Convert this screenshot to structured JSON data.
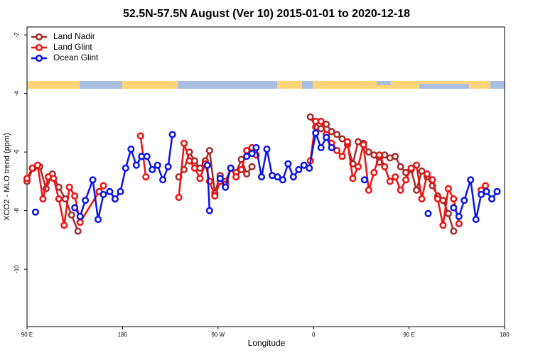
{
  "chart_data": {
    "type": "line",
    "title": "52.5N-57.5N August (Ver 10)   2015-01-01 to 2020-12-18",
    "xlabel": "Longitude",
    "ylabel": "XCO2 - MLO trend (ppm)",
    "xlim": [
      -270,
      180
    ],
    "ylim": [
      -11.96,
      -1.73
    ],
    "xticks": [
      {
        "value": -270,
        "label": "90 E"
      },
      {
        "value": -180,
        "label": "180"
      },
      {
        "value": -90,
        "label": "90 W"
      },
      0,
      {
        "value": 90,
        "label": "90 E"
      },
      180
    ],
    "yticks": [
      -10,
      -8,
      -6,
      -4,
      -2
    ],
    "legend": "top-left",
    "series": [
      {
        "name": "Land Nadir",
        "color": "#a52a2a",
        "x": [
          -270,
          -264,
          -258,
          -252,
          -246,
          -240,
          -234,
          -228,
          -222,
          -175,
          -127,
          -122,
          -117,
          -112,
          -107,
          -102,
          -98,
          -93,
          -88,
          -83,
          -78,
          -73,
          -68,
          -63,
          -58,
          -30,
          -3,
          2,
          7,
          12,
          17,
          22,
          27,
          32,
          37,
          42,
          47,
          52,
          57,
          62,
          67,
          72,
          77,
          82,
          87,
          92,
          97,
          102,
          107,
          112,
          117,
          122,
          127,
          132
        ],
        "values": [
          -7.0,
          -6.55,
          -6.5,
          -7.25,
          -6.75,
          -7.2,
          -7.6,
          -8.15,
          -8.7,
          null,
          -6.85,
          -6.6,
          -6.0,
          -6.3,
          -6.55,
          -6.3,
          -5.95,
          -7.4,
          -6.8,
          -7.0,
          -6.55,
          -6.7,
          -6.25,
          -6.75,
          -6.5,
          null,
          -4.8,
          -5.15,
          -5.2,
          -5.05,
          -5.3,
          -5.4,
          -5.55,
          -5.75,
          -6.4,
          -5.65,
          -5.7,
          -6.0,
          -6.1,
          -6.35,
          -6.1,
          -6.2,
          -6.15,
          -6.5,
          -6.7,
          -6.6,
          -7.3,
          -6.65,
          -6.85,
          -7.15,
          -7.5,
          -7.65,
          -8.1,
          -8.7
        ]
      },
      {
        "name": "Land Glint",
        "color": "#ee1111",
        "x": [
          -270,
          -265,
          -260,
          -255,
          -250,
          -245,
          -240,
          -235,
          -230,
          -225,
          -220,
          -202,
          -198,
          -190,
          -163,
          -158,
          -150,
          -127,
          -122,
          -117,
          -112,
          -107,
          -102,
          -98,
          -93,
          -88,
          -83,
          -78,
          -73,
          -68,
          -63,
          -58,
          -54,
          -30,
          -3,
          2,
          7,
          12,
          17,
          22,
          27,
          32,
          37,
          42,
          47,
          52,
          57,
          62,
          67,
          72,
          77,
          82,
          87,
          92,
          97,
          102,
          107,
          112,
          117,
          122,
          127,
          132,
          137,
          150,
          158,
          162
        ],
        "values": [
          -6.9,
          -6.55,
          -6.45,
          -7.6,
          -6.85,
          -6.9,
          -7.6,
          -8.5,
          -7.2,
          -7.5,
          -8.4,
          -7.35,
          -7.15,
          null,
          -5.45,
          -6.85,
          null,
          -7.55,
          -5.7,
          -6.3,
          -6.55,
          -6.9,
          -6.4,
          -7.0,
          -7.5,
          -7.0,
          -7.1,
          -6.55,
          -6.85,
          -6.6,
          -5.95,
          -5.85,
          -6.1,
          null,
          -6.3,
          -4.95,
          -4.95,
          -5.4,
          -5.7,
          -5.95,
          -6.15,
          -5.65,
          -6.9,
          -6.5,
          -5.75,
          -7.3,
          -6.7,
          -6.1,
          -6.5,
          -7.0,
          -6.85,
          -7.3,
          -6.95,
          -6.55,
          -6.45,
          -7.6,
          -6.75,
          -6.95,
          -7.6,
          -8.5,
          -7.25,
          -7.6,
          -8.45,
          null,
          -7.3,
          -7.15
        ]
      },
      {
        "name": "Ocean Glint",
        "color": "#0a14e6",
        "x": [
          -262,
          -240,
          -225,
          -220,
          -215,
          -208,
          -203,
          -198,
          -192,
          -187,
          -182,
          -177,
          -172,
          -167,
          -162,
          -157,
          -152,
          -147,
          -142,
          -137,
          -133,
          -130,
          -100,
          -98,
          -96,
          -88,
          -83,
          -78,
          -70,
          -63,
          -58,
          -54,
          -49,
          -44,
          -39,
          -34,
          -29,
          -24,
          -19,
          -14,
          -9,
          -4,
          2,
          7,
          12,
          17,
          30,
          48,
          80,
          108,
          120,
          132,
          137,
          142,
          148,
          153,
          158,
          163,
          168,
          173
        ],
        "values": [
          -8.05,
          null,
          -7.9,
          -8.2,
          -7.65,
          -6.95,
          -8.3,
          -7.45,
          -7.35,
          -7.6,
          -7.35,
          -6.55,
          -5.9,
          -6.45,
          -6.15,
          -6.15,
          -6.6,
          -6.45,
          -6.95,
          -6.5,
          -5.4,
          null,
          -6.45,
          -8.0,
          null,
          -6.9,
          -7.2,
          -6.55,
          null,
          -6.15,
          -6.05,
          -5.85,
          -6.85,
          -5.9,
          -6.8,
          -6.85,
          -6.95,
          -6.4,
          -6.85,
          -6.6,
          -6.45,
          -6.55,
          -5.35,
          -5.85,
          -5.5,
          -5.85,
          null,
          -6.95,
          null,
          -8.1,
          null,
          -7.9,
          -8.2,
          -7.65,
          -6.95,
          -8.3,
          -7.45,
          -7.35,
          -7.6,
          -7.35
        ]
      }
    ]
  }
}
